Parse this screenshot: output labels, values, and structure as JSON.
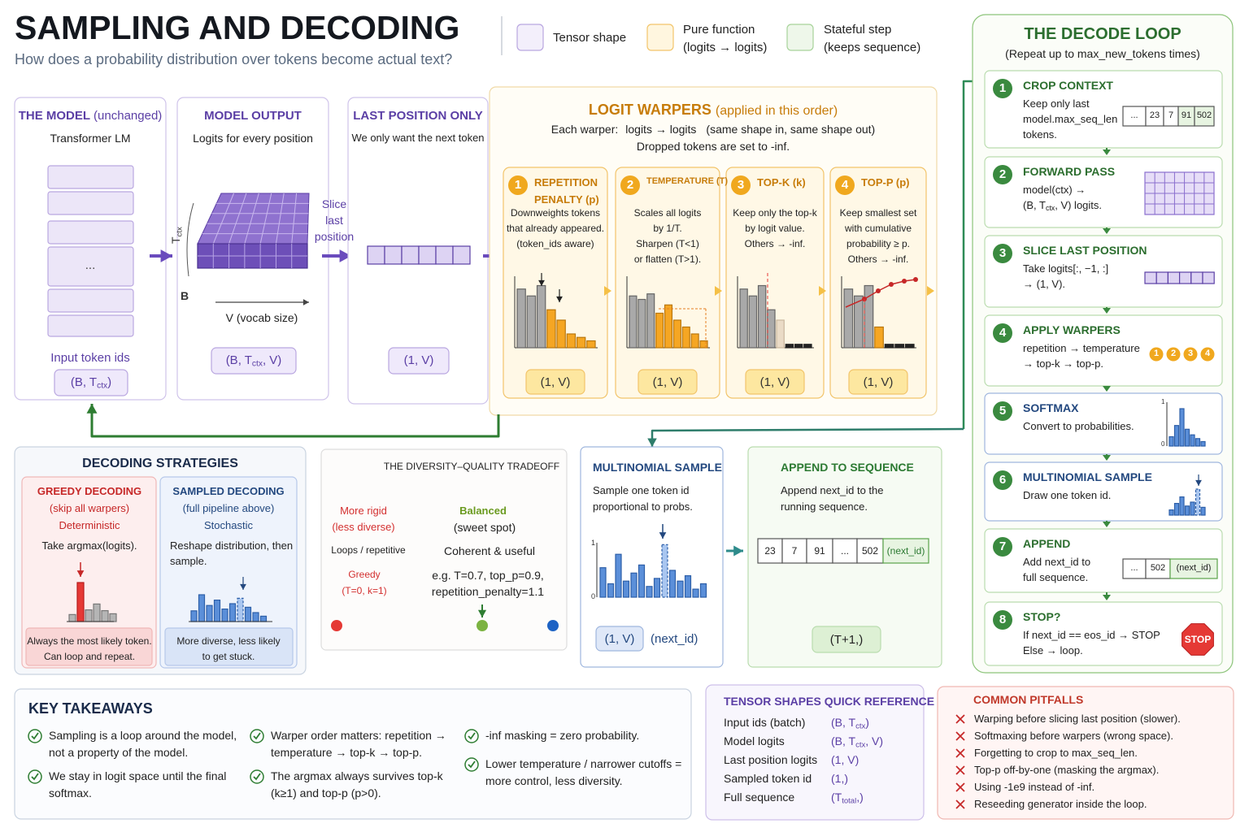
{
  "header": {
    "title": "SAMPLING AND DECODING",
    "subtitle": "How does a probability distribution over tokens become actual text?"
  },
  "legend": [
    {
      "label": "Tensor shape"
    },
    {
      "label": "Pure function",
      "note": "(logits → logits)"
    },
    {
      "label": "Stateful step",
      "note": "(keeps sequence)"
    }
  ],
  "pipeline": {
    "model": {
      "title": "THE MODEL",
      "title_note": "(unchanged)",
      "subtitle": "Transformer LM",
      "ellipsis": "...",
      "input_label": "Input token ids",
      "shape": {
        "pre": "(B, T",
        "sub": "ctx",
        "post": ")"
      }
    },
    "model_output": {
      "title": "MODEL OUTPUT",
      "subtitle": "Logits for every position",
      "axis_t": {
        "pre": "T",
        "sub": "ctx"
      },
      "axis_b": "B",
      "axis_v": "V (vocab size)",
      "shape": {
        "pre": "(B, T",
        "sub": "ctx",
        "post": ", V)"
      }
    },
    "slice_label": [
      "Slice",
      "last",
      "position"
    ],
    "last_position": {
      "title": "LAST POSITION ONLY",
      "subtitle": "We only want the next token",
      "shape": "(1, V)"
    }
  },
  "warpers": {
    "title": "LOGIT WARPERS",
    "title_note": "(applied in this order)",
    "line1_label": "Each warper:",
    "line1": "logits → logits",
    "line1_note": "(same shape in, same shape out)",
    "line2": "Dropped tokens are set to -inf.",
    "items": [
      {
        "num": "1",
        "title": [
          "REPETITION",
          "PENALTY (p)"
        ],
        "desc": [
          "Downweights tokens",
          "that already appeared.",
          "(token_ids aware)"
        ],
        "shape": "(1, V)"
      },
      {
        "num": "2",
        "title": [
          "TEMPERATURE (T)"
        ],
        "desc": [
          "Scales all logits",
          "by 1/T.",
          "Sharpen (T<1)",
          "or flatten (T>1)."
        ],
        "shape": "(1, V)"
      },
      {
        "num": "3",
        "title": [
          "TOP-K (k)"
        ],
        "desc": [
          "Keep only the top-k",
          "by logit value.",
          "Others → -inf."
        ],
        "shape": "(1, V)"
      },
      {
        "num": "4",
        "title": [
          "TOP-P (p)"
        ],
        "desc": [
          "Keep smallest set",
          "with cumulative",
          "probability ≥ p.",
          "Others → -inf."
        ],
        "shape": "(1, V)"
      }
    ]
  },
  "decode_loop": {
    "title": "THE DECODE LOOP",
    "subtitle": "(Repeat up to max_new_tokens times)",
    "steps": [
      {
        "num": "1",
        "title": "CROP CONTEXT",
        "desc": [
          "Keep only last",
          "model.max_seq_len",
          "tokens."
        ],
        "tokens": [
          "...",
          "23",
          "7",
          "91",
          "502"
        ]
      },
      {
        "num": "2",
        "title": "FORWARD PASS",
        "desc": [
          "model(ctx) →",
          {
            "pre": "(B, T",
            "sub": "ctx",
            "post": ", V) logits."
          }
        ]
      },
      {
        "num": "3",
        "title": "SLICE LAST POSITION",
        "desc": [
          "Take logits[:, −1, :]",
          "→ (1, V)."
        ]
      },
      {
        "num": "4",
        "title": "APPLY WARPERS",
        "desc": [
          "repetition → temperature",
          "→ top-k → top-p."
        ],
        "badges": [
          "1",
          "2",
          "3",
          "4"
        ]
      },
      {
        "num": "5",
        "title": "SOFTMAX",
        "desc": [
          "Convert to probabilities."
        ],
        "axis": [
          "1",
          "0"
        ]
      },
      {
        "num": "6",
        "title": "MULTINOMIAL SAMPLE",
        "desc": [
          "Draw one token id."
        ]
      },
      {
        "num": "7",
        "title": "APPEND",
        "desc": [
          "Add next_id to",
          "full sequence."
        ],
        "tokens": [
          "...",
          "502",
          "(next_id)"
        ]
      },
      {
        "num": "8",
        "title": "STOP?",
        "desc": [
          "If next_id == eos_id → STOP",
          "Else → loop."
        ],
        "stop_sign": "STOP"
      }
    ]
  },
  "strategies": {
    "title": "DECODING STRATEGIES",
    "greedy": {
      "title": "GREEDY DECODING",
      "note": "(skip all warpers)",
      "kind": "Deterministic",
      "desc": [
        "Take argmax(logits)."
      ],
      "footer": [
        "Always the most likely token.",
        "Can loop and repeat."
      ]
    },
    "sampled": {
      "title": "SAMPLED DECODING",
      "note": "(full pipeline above)",
      "kind": "Stochastic",
      "desc": [
        "Reshape distribution, then",
        "sample."
      ],
      "footer": [
        "More diverse, less likely",
        "to get stuck."
      ]
    }
  },
  "tradeoff": {
    "title": "THE DIVERSITY–QUALITY TRADEOFF",
    "left": {
      "title": [
        "More rigid",
        "(less diverse)"
      ],
      "desc": "Loops / repetitive",
      "example": [
        "Greedy",
        "(T=0, k=1)"
      ]
    },
    "middle": {
      "title": "Balanced",
      "title2": "(sweet spot)",
      "desc": "Coherent & useful",
      "example": [
        "e.g. T=0.7, top_p=0.9,",
        "repetition_penalty=1.1"
      ]
    }
  },
  "multinomial": {
    "title": "MULTINOMIAL SAMPLE",
    "desc": [
      "Sample one token id",
      "proportional to probs."
    ],
    "axis": [
      "1",
      "0"
    ],
    "shapes": [
      "(1, V)",
      "(next_id)"
    ]
  },
  "append": {
    "title": "APPEND TO SEQUENCE",
    "desc": [
      "Append next_id to the",
      "running sequence."
    ],
    "tokens": [
      "23",
      "7",
      "91",
      "...",
      "502",
      "(next_id)"
    ],
    "shape": "(T+1,)"
  },
  "takeaways": {
    "title": "KEY TAKEAWAYS",
    "items": [
      [
        "Sampling is a loop around the model,",
        "not a property of the model."
      ],
      [
        "We stay in logit space until the final",
        "softmax."
      ],
      [
        "Warper order matters: repetition →",
        "temperature → top-k → top-p."
      ],
      [
        "The argmax always survives top-k",
        "(k≥1) and top-p (p>0)."
      ],
      [
        "-inf masking = zero probability."
      ],
      [
        "Lower temperature / narrower cutoffs =",
        "more control, less diversity."
      ]
    ]
  },
  "shapes_reference": {
    "title": "TENSOR SHAPES QUICK REFERENCE",
    "rows": [
      {
        "label": "Input ids (batch)",
        "shape": {
          "pre": "(B, T",
          "sub": "ctx",
          "post": ")"
        }
      },
      {
        "label": "Model logits",
        "shape": {
          "pre": "(B, T",
          "sub": "ctx",
          "post": ", V)"
        }
      },
      {
        "label": "Last position logits",
        "shape": "(1, V)"
      },
      {
        "label": "Sampled token id",
        "shape": "(1,)"
      },
      {
        "label": "Full sequence",
        "shape": {
          "pre": "(T",
          "sub": "total",
          "post": ",)"
        }
      }
    ]
  },
  "pitfalls": {
    "title": "COMMON PITFALLS",
    "items": [
      "Warping before slicing last position (slower).",
      "Softmaxing before warpers (wrong space).",
      "Forgetting to crop to max_seq_len.",
      "Top-p off-by-one (masking the argmax).",
      "Using -1e9 instead of -inf.",
      "Reseeding generator inside the loop."
    ]
  }
}
